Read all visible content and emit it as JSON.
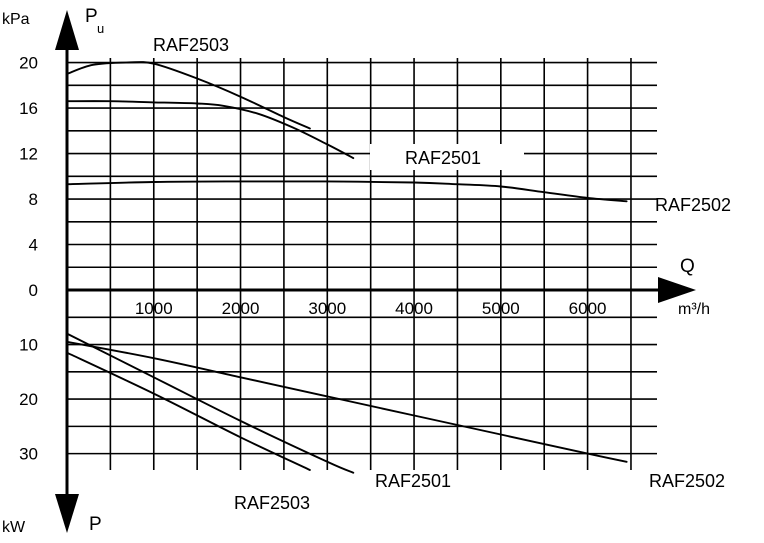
{
  "chart_data": {
    "type": "line",
    "upper_axis": {
      "unit": "kPa",
      "symbol": "P",
      "symbol_sub": "u",
      "ticks": [
        0,
        4,
        8,
        12,
        16,
        20
      ],
      "ylim": [
        0,
        20.4
      ]
    },
    "lower_axis": {
      "unit": "kW",
      "symbol": "P",
      "ticks": [
        10,
        20,
        30
      ],
      "ylim": [
        0,
        33
      ]
    },
    "x_axis": {
      "label": "Q",
      "unit": "m³/h",
      "ticks": [
        1000,
        2000,
        3000,
        4000,
        5000,
        6000
      ],
      "xlim": [
        0,
        6800
      ]
    },
    "pressure_series": [
      {
        "name": "RAF2503",
        "x": [
          0,
          300,
          700,
          1000,
          1500,
          2000,
          2500,
          2800
        ],
        "y": [
          19,
          19.8,
          20,
          19.9,
          18.6,
          17,
          15.2,
          14.2
        ]
      },
      {
        "name": "RAF2501",
        "x": [
          0,
          500,
          1000,
          1500,
          1800,
          2200,
          2600,
          3000,
          3300
        ],
        "y": [
          16.6,
          16.6,
          16.5,
          16.4,
          16.2,
          15.5,
          14.3,
          12.8,
          11.6
        ]
      },
      {
        "name": "RAF2502",
        "x": [
          0,
          1000,
          2000,
          3000,
          4000,
          4500,
          5000,
          5500,
          6000,
          6450
        ],
        "y": [
          9.3,
          9.5,
          9.55,
          9.55,
          9.45,
          9.3,
          9.1,
          8.6,
          8.1,
          7.8
        ]
      }
    ],
    "power_series": [
      {
        "name": "RAF2501",
        "x": [
          0,
          1000,
          2000,
          3000,
          3300
        ],
        "y": [
          8,
          16,
          24,
          31.5,
          33.5
        ]
      },
      {
        "name": "RAF2502",
        "x": [
          0,
          1000,
          2000,
          3000,
          4000,
          5000,
          6000,
          6450
        ],
        "y": [
          9.5,
          12.5,
          16,
          19.5,
          23,
          26.5,
          30,
          31.5
        ]
      },
      {
        "name": "RAF2503",
        "x": [
          0,
          1000,
          2000,
          2800
        ],
        "y": [
          11.5,
          19,
          27,
          33
        ]
      }
    ]
  }
}
